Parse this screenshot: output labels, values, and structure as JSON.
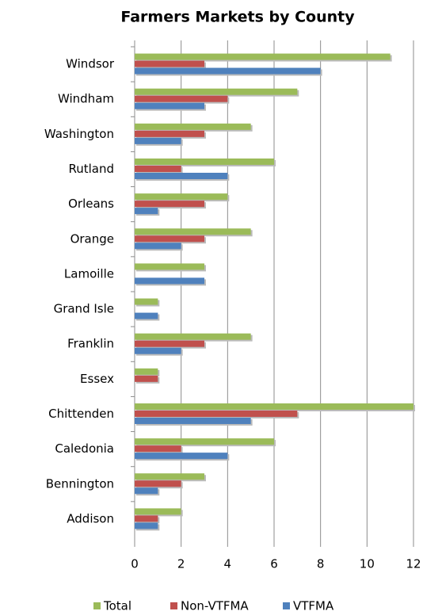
{
  "chart_data": {
    "type": "bar",
    "orientation": "horizontal",
    "title": "Farmers Markets by County",
    "categories": [
      "Windsor",
      "Windham",
      "Washington",
      "Rutland",
      "Orleans",
      "Orange",
      "Lamoille",
      "Grand Isle",
      "Franklin",
      "Essex",
      "Chittenden",
      "Caledonia",
      "Bennington",
      "Addison"
    ],
    "series": [
      {
        "name": "Total",
        "color": "#9bbb59",
        "values": [
          11,
          7,
          5,
          6,
          4,
          5,
          3,
          1,
          5,
          1,
          12,
          6,
          3,
          2
        ]
      },
      {
        "name": "Non-VTFMA",
        "color": "#c0504d",
        "values": [
          3,
          4,
          3,
          2,
          3,
          3,
          0,
          0,
          3,
          1,
          7,
          2,
          2,
          1
        ]
      },
      {
        "name": "VTFMA",
        "color": "#4f81bd",
        "values": [
          8,
          3,
          2,
          4,
          1,
          2,
          3,
          1,
          2,
          0,
          5,
          4,
          1,
          1
        ]
      }
    ],
    "xlim": [
      0,
      12
    ],
    "xticks": [
      0,
      2,
      4,
      6,
      8,
      10,
      12
    ],
    "grid": true,
    "legend": "bottom"
  }
}
